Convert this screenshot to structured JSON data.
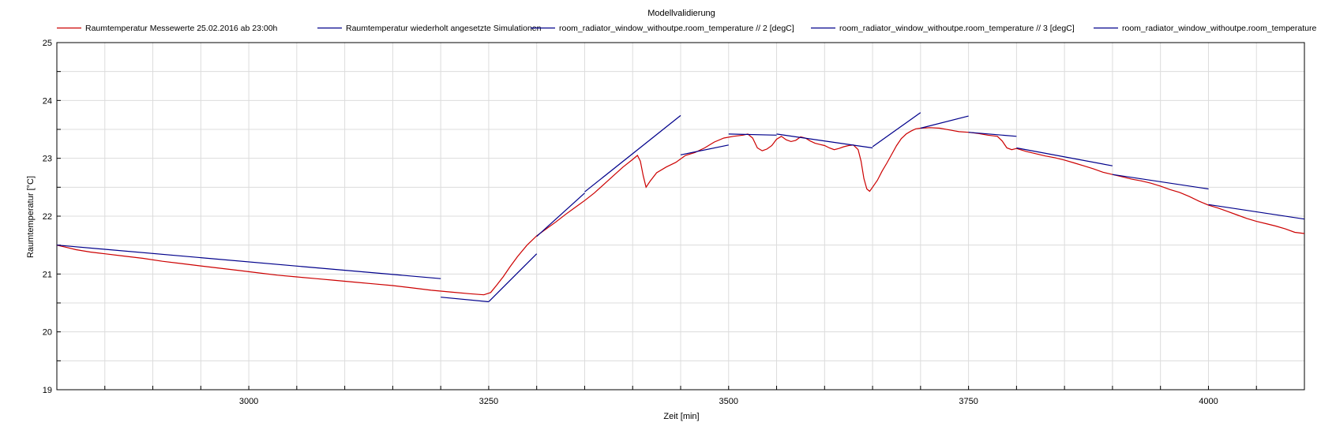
{
  "chart_data": {
    "type": "line",
    "title": "Modellvalidierung",
    "xlabel": "Zeit [min]",
    "ylabel": "Raumtemperatur [°C]",
    "xlim": [
      2800,
      4100
    ],
    "ylim": [
      19,
      25
    ],
    "xticks": [
      3000,
      3250,
      3500,
      3750,
      4000
    ],
    "yticks": [
      19,
      20,
      21,
      22,
      23,
      24,
      25
    ],
    "grid": true,
    "legend_position": "top",
    "legend": [
      {
        "label": "Raumtemperatur Messewerte 25.02.2016 ab 23:00h",
        "color": "#cc0000"
      },
      {
        "label": "Raumtemperatur wiederholt angesetzte Simulationen",
        "color": "#00008b"
      },
      {
        "label": "room_radiator_window_withoutpe.room_temperature // 2 [degC]",
        "color": "#00008b"
      },
      {
        "label": "room_radiator_window_withoutpe.room_temperature // 3 [degC]",
        "color": "#00008b"
      },
      {
        "label": "room_radiator_window_withoutpe.room_temperature",
        "color": "#00008b"
      }
    ],
    "series": [
      {
        "name": "Raumtemperatur Messewerte 25.02.2016 ab 23:00h",
        "color": "#cc0000",
        "points": [
          [
            2800,
            21.5
          ],
          [
            2810,
            21.46
          ],
          [
            2820,
            21.42
          ],
          [
            2835,
            21.38
          ],
          [
            2850,
            21.35
          ],
          [
            2870,
            21.31
          ],
          [
            2890,
            21.27
          ],
          [
            2910,
            21.22
          ],
          [
            2930,
            21.18
          ],
          [
            2950,
            21.14
          ],
          [
            2970,
            21.1
          ],
          [
            2990,
            21.06
          ],
          [
            3010,
            21.02
          ],
          [
            3030,
            20.98
          ],
          [
            3050,
            20.95
          ],
          [
            3070,
            20.92
          ],
          [
            3090,
            20.89
          ],
          [
            3110,
            20.86
          ],
          [
            3130,
            20.83
          ],
          [
            3150,
            20.8
          ],
          [
            3170,
            20.76
          ],
          [
            3190,
            20.72
          ],
          [
            3210,
            20.69
          ],
          [
            3230,
            20.66
          ],
          [
            3245,
            20.64
          ],
          [
            3252,
            20.68
          ],
          [
            3258,
            20.8
          ],
          [
            3265,
            20.95
          ],
          [
            3272,
            21.12
          ],
          [
            3280,
            21.3
          ],
          [
            3290,
            21.5
          ],
          [
            3300,
            21.66
          ],
          [
            3310,
            21.78
          ],
          [
            3320,
            21.9
          ],
          [
            3330,
            22.03
          ],
          [
            3340,
            22.15
          ],
          [
            3350,
            22.27
          ],
          [
            3360,
            22.4
          ],
          [
            3370,
            22.55
          ],
          [
            3380,
            22.7
          ],
          [
            3390,
            22.85
          ],
          [
            3400,
            22.98
          ],
          [
            3405,
            23.05
          ],
          [
            3408,
            22.95
          ],
          [
            3411,
            22.7
          ],
          [
            3414,
            22.5
          ],
          [
            3418,
            22.6
          ],
          [
            3425,
            22.75
          ],
          [
            3435,
            22.85
          ],
          [
            3445,
            22.93
          ],
          [
            3455,
            23.05
          ],
          [
            3465,
            23.1
          ],
          [
            3475,
            23.18
          ],
          [
            3485,
            23.28
          ],
          [
            3495,
            23.35
          ],
          [
            3505,
            23.38
          ],
          [
            3515,
            23.4
          ],
          [
            3520,
            23.42
          ],
          [
            3525,
            23.35
          ],
          [
            3530,
            23.18
          ],
          [
            3535,
            23.13
          ],
          [
            3540,
            23.16
          ],
          [
            3545,
            23.22
          ],
          [
            3550,
            23.33
          ],
          [
            3555,
            23.38
          ],
          [
            3560,
            23.32
          ],
          [
            3565,
            23.29
          ],
          [
            3570,
            23.31
          ],
          [
            3575,
            23.37
          ],
          [
            3580,
            23.35
          ],
          [
            3585,
            23.3
          ],
          [
            3590,
            23.26
          ],
          [
            3595,
            23.24
          ],
          [
            3600,
            23.22
          ],
          [
            3605,
            23.18
          ],
          [
            3610,
            23.15
          ],
          [
            3615,
            23.17
          ],
          [
            3620,
            23.2
          ],
          [
            3625,
            23.22
          ],
          [
            3630,
            23.23
          ],
          [
            3635,
            23.15
          ],
          [
            3638,
            22.95
          ],
          [
            3641,
            22.65
          ],
          [
            3644,
            22.47
          ],
          [
            3647,
            22.43
          ],
          [
            3650,
            22.5
          ],
          [
            3655,
            22.62
          ],
          [
            3660,
            22.78
          ],
          [
            3665,
            22.92
          ],
          [
            3670,
            23.07
          ],
          [
            3675,
            23.22
          ],
          [
            3680,
            23.34
          ],
          [
            3685,
            23.42
          ],
          [
            3690,
            23.47
          ],
          [
            3695,
            23.51
          ],
          [
            3700,
            23.52
          ],
          [
            3710,
            23.53
          ],
          [
            3720,
            23.52
          ],
          [
            3730,
            23.49
          ],
          [
            3740,
            23.46
          ],
          [
            3750,
            23.45
          ],
          [
            3760,
            23.43
          ],
          [
            3770,
            23.4
          ],
          [
            3780,
            23.38
          ],
          [
            3785,
            23.3
          ],
          [
            3790,
            23.18
          ],
          [
            3795,
            23.15
          ],
          [
            3800,
            23.17
          ],
          [
            3810,
            23.12
          ],
          [
            3820,
            23.08
          ],
          [
            3830,
            23.04
          ],
          [
            3840,
            23.01
          ],
          [
            3850,
            22.97
          ],
          [
            3860,
            22.92
          ],
          [
            3870,
            22.87
          ],
          [
            3880,
            22.82
          ],
          [
            3890,
            22.76
          ],
          [
            3900,
            22.72
          ],
          [
            3910,
            22.68
          ],
          [
            3920,
            22.64
          ],
          [
            3930,
            22.61
          ],
          [
            3940,
            22.57
          ],
          [
            3950,
            22.52
          ],
          [
            3960,
            22.46
          ],
          [
            3970,
            22.41
          ],
          [
            3980,
            22.34
          ],
          [
            3990,
            22.26
          ],
          [
            4000,
            22.19
          ],
          [
            4010,
            22.14
          ],
          [
            4020,
            22.08
          ],
          [
            4030,
            22.02
          ],
          [
            4040,
            21.96
          ],
          [
            4050,
            21.91
          ],
          [
            4060,
            21.87
          ],
          [
            4070,
            21.83
          ],
          [
            4080,
            21.78
          ],
          [
            4090,
            21.72
          ],
          [
            4100,
            21.7
          ]
        ]
      },
      {
        "name": "Raumtemperatur wiederholt angesetzte Simulationen",
        "color": "#00008b",
        "segments": [
          [
            [
              2800,
              21.5
            ],
            [
              3200,
              20.92
            ]
          ],
          [
            [
              3200,
              20.6
            ],
            [
              3250,
              20.52
            ]
          ],
          [
            [
              3250,
              20.52
            ],
            [
              3300,
              21.35
            ]
          ],
          [
            [
              3300,
              21.65
            ],
            [
              3350,
              22.4
            ]
          ],
          [
            [
              3350,
              22.42
            ],
            [
              3450,
              23.74
            ]
          ],
          [
            [
              3450,
              23.06
            ],
            [
              3500,
              23.23
            ]
          ],
          [
            [
              3500,
              23.42
            ],
            [
              3550,
              23.4
            ]
          ],
          [
            [
              3550,
              23.42
            ],
            [
              3650,
              23.18
            ]
          ],
          [
            [
              3650,
              23.2
            ],
            [
              3700,
              23.79
            ]
          ],
          [
            [
              3700,
              23.52
            ],
            [
              3750,
              23.73
            ]
          ],
          [
            [
              3750,
              23.45
            ],
            [
              3800,
              23.38
            ]
          ],
          [
            [
              3800,
              23.18
            ],
            [
              3900,
              22.87
            ]
          ],
          [
            [
              3900,
              22.72
            ],
            [
              4000,
              22.47
            ]
          ],
          [
            [
              4000,
              22.2
            ],
            [
              4100,
              21.95
            ]
          ]
        ]
      }
    ]
  }
}
